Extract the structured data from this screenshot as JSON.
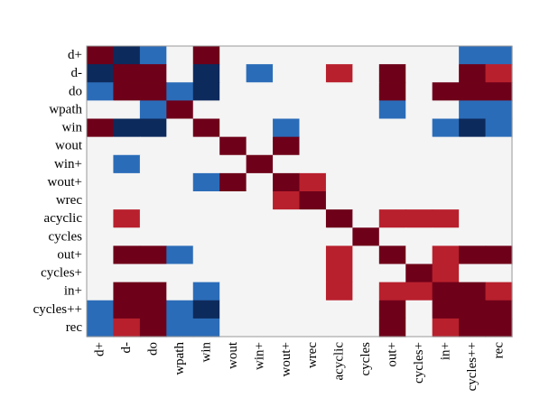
{
  "chart_data": {
    "type": "heatmap",
    "title": "",
    "xlabel": "",
    "ylabel": "",
    "row_labels": [
      "d+",
      "d-",
      "do",
      "wpath",
      "win",
      "wout",
      "win+",
      "wout+",
      "wrec",
      "acyclic",
      "cycles",
      "out+",
      "cycles+",
      "in+",
      "cycles++",
      "rec"
    ],
    "col_labels": [
      "d+",
      "d-",
      "do",
      "wpath",
      "win",
      "wout",
      "win+",
      "wout+",
      "wrec",
      "acyclic",
      "cycles",
      "out+",
      "cycles+",
      "in+",
      "cycles++",
      "rec"
    ],
    "value_scale": [
      -2,
      2
    ],
    "legend": "none",
    "grid": false,
    "values": [
      [
        2,
        -2,
        -1,
        0,
        2,
        0,
        0,
        0,
        0,
        0,
        0,
        0,
        0,
        0,
        -1,
        -1
      ],
      [
        -2,
        2,
        2,
        0,
        -2,
        0,
        -1,
        0,
        0,
        1,
        0,
        2,
        0,
        0,
        2,
        1
      ],
      [
        -1,
        2,
        2,
        -1,
        -2,
        0,
        0,
        0,
        0,
        0,
        0,
        2,
        0,
        2,
        2,
        2
      ],
      [
        0,
        0,
        -1,
        2,
        0,
        0,
        0,
        0,
        0,
        0,
        0,
        -1,
        0,
        0,
        -1,
        -1
      ],
      [
        2,
        -2,
        -2,
        0,
        2,
        0,
        0,
        -1,
        0,
        0,
        0,
        0,
        0,
        -1,
        -2,
        -1
      ],
      [
        0,
        0,
        0,
        0,
        0,
        2,
        0,
        2,
        0,
        0,
        0,
        0,
        0,
        0,
        0,
        0
      ],
      [
        0,
        -1,
        0,
        0,
        0,
        0,
        2,
        0,
        0,
        0,
        0,
        0,
        0,
        0,
        0,
        0
      ],
      [
        0,
        0,
        0,
        0,
        -1,
        2,
        0,
        2,
        1,
        0,
        0,
        0,
        0,
        0,
        0,
        0
      ],
      [
        0,
        0,
        0,
        0,
        0,
        0,
        0,
        1,
        2,
        0,
        0,
        0,
        0,
        0,
        0,
        0
      ],
      [
        0,
        1,
        0,
        0,
        0,
        0,
        0,
        0,
        0,
        2,
        0,
        1,
        1,
        1,
        0,
        0
      ],
      [
        0,
        0,
        0,
        0,
        0,
        0,
        0,
        0,
        0,
        0,
        2,
        0,
        0,
        0,
        0,
        0
      ],
      [
        0,
        2,
        2,
        -1,
        0,
        0,
        0,
        0,
        0,
        1,
        0,
        2,
        0,
        1,
        2,
        2
      ],
      [
        0,
        0,
        0,
        0,
        0,
        0,
        0,
        0,
        0,
        1,
        0,
        0,
        2,
        1,
        0,
        0
      ],
      [
        0,
        2,
        2,
        0,
        -1,
        0,
        0,
        0,
        0,
        1,
        0,
        1,
        1,
        2,
        2,
        1
      ],
      [
        -1,
        2,
        2,
        -1,
        -2,
        0,
        0,
        0,
        0,
        0,
        0,
        2,
        0,
        2,
        2,
        2
      ],
      [
        -1,
        1,
        2,
        -1,
        -1,
        0,
        0,
        0,
        0,
        0,
        0,
        2,
        0,
        1,
        2,
        2
      ]
    ],
    "colors": {
      "-2": "#0d2a5c",
      "-1": "#2b6cb8",
      "0": "#f4f4f4",
      "1": "#b8202d",
      "2": "#6e0019"
    },
    "frame_color": "#999999"
  }
}
